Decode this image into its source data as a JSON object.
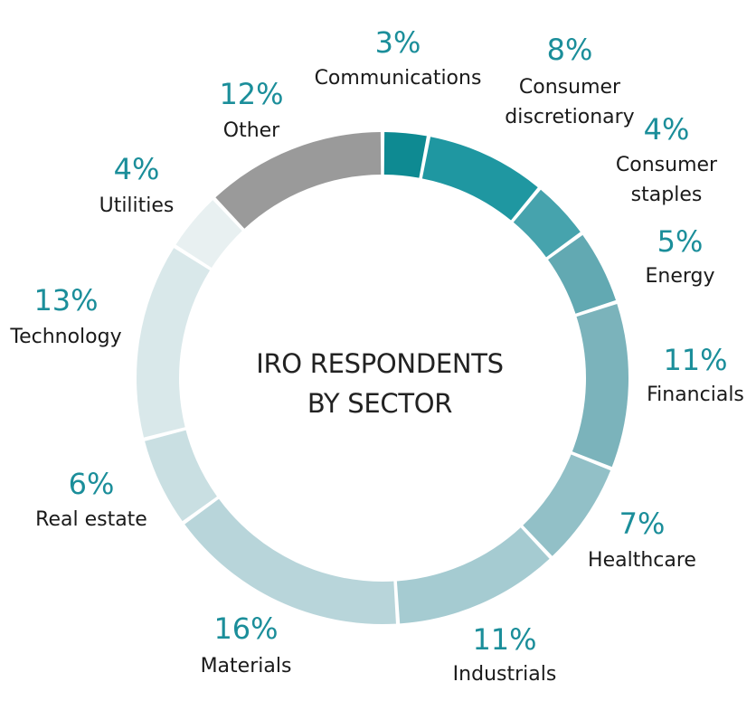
{
  "chart_data": {
    "type": "pie",
    "donut": true,
    "title": "IRO RESPONDENTS BY SECTOR",
    "title_lines": [
      "IRO RESPONDENTS",
      "BY SECTOR"
    ],
    "value_unit": "%",
    "slices": [
      {
        "label": "Communications",
        "label_lines": [
          "Communications"
        ],
        "value": 3,
        "value_text": "3%",
        "color": "#0e8a92"
      },
      {
        "label": "Consumer discretionary",
        "label_lines": [
          "Consumer",
          "discretionary"
        ],
        "value": 8,
        "value_text": "8%",
        "color": "#1f97a1"
      },
      {
        "label": "Consumer staples",
        "label_lines": [
          "Consumer",
          "staples"
        ],
        "value": 4,
        "value_text": "4%",
        "color": "#46a3ad"
      },
      {
        "label": "Energy",
        "label_lines": [
          "Energy"
        ],
        "value": 5,
        "value_text": "5%",
        "color": "#62a9b2"
      },
      {
        "label": "Financials",
        "label_lines": [
          "Financials"
        ],
        "value": 11,
        "value_text": "11%",
        "color": "#7bb3bb"
      },
      {
        "label": "Healthcare",
        "label_lines": [
          "Healthcare"
        ],
        "value": 7,
        "value_text": "7%",
        "color": "#92c0c7"
      },
      {
        "label": "Industrials",
        "label_lines": [
          "Industrials"
        ],
        "value": 11,
        "value_text": "11%",
        "color": "#a5cbd1"
      },
      {
        "label": "Materials",
        "label_lines": [
          "Materials"
        ],
        "value": 16,
        "value_text": "16%",
        "color": "#b8d5da"
      },
      {
        "label": "Real estate",
        "label_lines": [
          "Real estate"
        ],
        "value": 6,
        "value_text": "6%",
        "color": "#c9dfe2"
      },
      {
        "label": "Technology",
        "label_lines": [
          "Technology"
        ],
        "value": 13,
        "value_text": "13%",
        "color": "#d9e8ea"
      },
      {
        "label": "Utilities",
        "label_lines": [
          "Utilities"
        ],
        "value": 4,
        "value_text": "4%",
        "color": "#e8f0f1"
      },
      {
        "label": "Other",
        "label_lines": [
          "Other"
        ],
        "value": 12,
        "value_text": "12%",
        "color": "#9a9a9a"
      }
    ]
  }
}
